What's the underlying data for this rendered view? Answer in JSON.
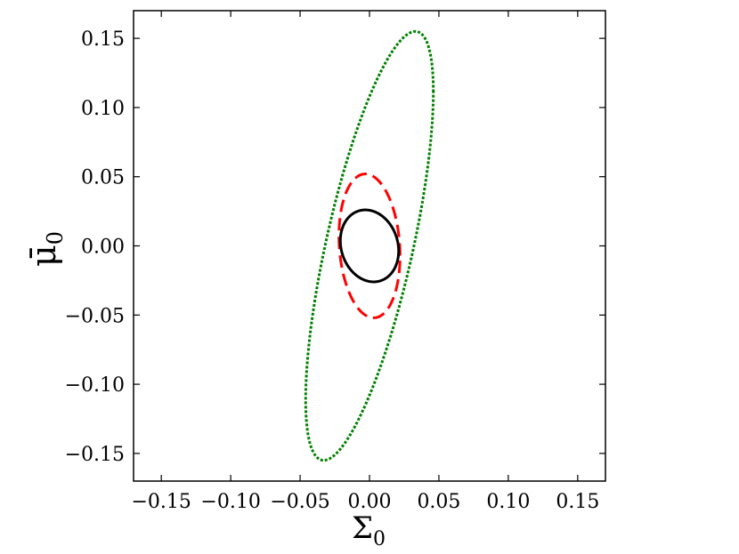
{
  "chart_data": {
    "type": "line",
    "title": "",
    "xlabel": "Σ",
    "xlabel_sub": "0",
    "ylabel": "μ̄",
    "ylabel_sub": "0",
    "xlim": [
      -0.17,
      0.17
    ],
    "ylim": [
      -0.17,
      0.17
    ],
    "xticks": [
      -0.15,
      -0.1,
      -0.05,
      0.0,
      0.05,
      0.1,
      0.15
    ],
    "yticks": [
      -0.15,
      -0.1,
      -0.05,
      0.0,
      0.05,
      0.1,
      0.15
    ],
    "xtick_labels": [
      "−0.15",
      "−0.10",
      "−0.05",
      "0.00",
      "0.05",
      "0.10",
      "0.15"
    ],
    "ytick_labels": [
      "−0.15",
      "−0.10",
      "−0.05",
      "0.00",
      "0.05",
      "0.10",
      "0.15"
    ],
    "grid": false,
    "legend": false,
    "series": [
      {
        "color": "#008000",
        "style": "dotted",
        "shape": "ellipse",
        "center": [
          0.0,
          0.0
        ],
        "x_extent": [
          -0.046,
          0.046
        ],
        "y_extent": [
          -0.155,
          0.155
        ],
        "top_point": [
          0.033,
          0.155
        ],
        "bottom_point": [
          -0.033,
          -0.155
        ]
      },
      {
        "color": "#ff0000",
        "style": "dashed",
        "shape": "ellipse",
        "center": [
          0.0,
          0.0
        ],
        "x_extent": [
          -0.022,
          0.022
        ],
        "y_extent": [
          -0.052,
          0.052
        ],
        "top_point": [
          -0.003,
          0.052
        ],
        "bottom_point": [
          0.003,
          -0.052
        ]
      },
      {
        "color": "#000000",
        "style": "solid",
        "shape": "ellipse",
        "center": [
          0.0,
          0.0
        ],
        "x_extent": [
          -0.021,
          0.021
        ],
        "y_extent": [
          -0.026,
          0.026
        ],
        "top_point": [
          -0.003,
          0.026
        ],
        "bottom_point": [
          0.003,
          -0.026
        ]
      }
    ]
  }
}
